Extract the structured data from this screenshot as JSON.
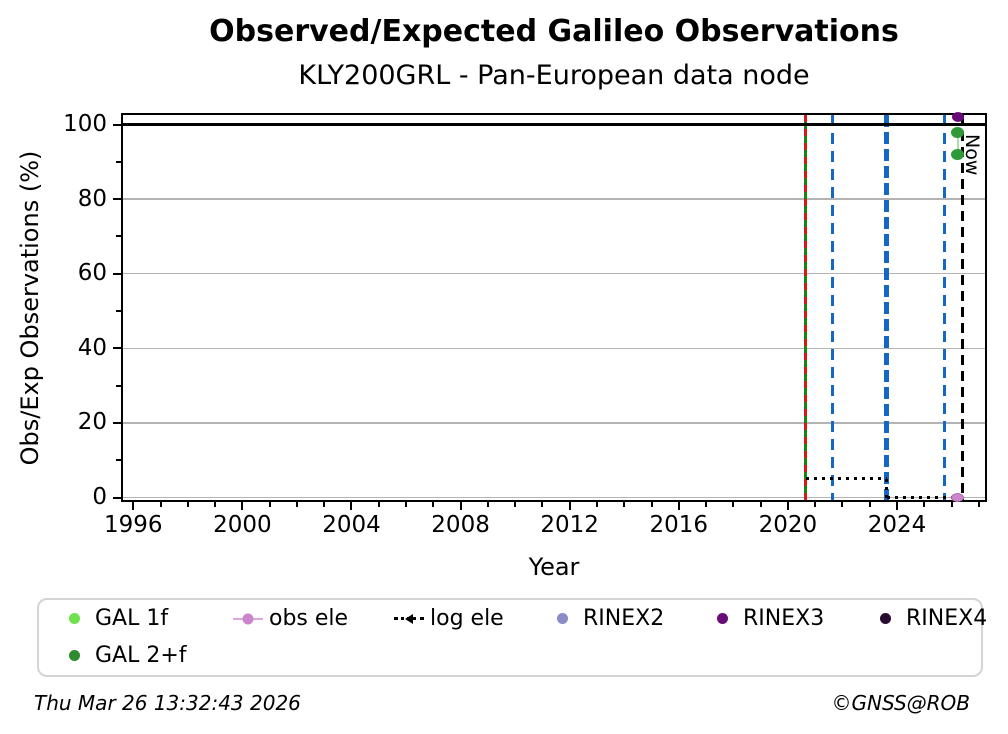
{
  "chart_data": {
    "type": "line",
    "title": "Observed/Expected Galileo Observations",
    "subtitle": "KLY200GRL - Pan-European data node",
    "xlabel": "Year",
    "ylabel": "Obs/Exp Observations (%)",
    "xlim": [
      1995.55,
      2027.3
    ],
    "ylim": [
      -1.2,
      103.1
    ],
    "xticks": [
      1996,
      2000,
      2004,
      2008,
      2012,
      2016,
      2020,
      2024
    ],
    "xminor_step": 1,
    "yticks": [
      0,
      20,
      40,
      60,
      80,
      100
    ],
    "yminor_step": 10,
    "grid": {
      "axis": "y",
      "color": "#b3b3b3"
    },
    "reference_line": {
      "y": 100,
      "color": "#000000"
    },
    "event_lines": [
      {
        "x": 2020.65,
        "style": "solid-with-dash-overlay",
        "color": "#128812",
        "overlay_color": "#d81818",
        "width": 3,
        "dash": 7,
        "gap": 7
      },
      {
        "x": 2021.65,
        "style": "dashed",
        "color": "#1467c4",
        "width": 3,
        "dash": 11,
        "gap": 7
      },
      {
        "x": 2023.63,
        "style": "dashed",
        "color": "#1467c4",
        "width": 5,
        "dash": 12,
        "gap": 5
      },
      {
        "x": 2025.75,
        "style": "dashed",
        "color": "#1467c4",
        "width": 3,
        "dash": 11,
        "gap": 7
      },
      {
        "x": 2026.4,
        "style": "dashed",
        "color": "#000000",
        "width": 3,
        "dash": 10,
        "gap": 6,
        "label": "Now"
      }
    ],
    "series": [
      {
        "name": "GAL 1f",
        "type": "line",
        "color": "#6fe04e",
        "line_color": "#a9e2a9",
        "points": [
          [
            2026.22,
            98
          ],
          [
            2026.22,
            92
          ]
        ]
      },
      {
        "name": "log ele",
        "type": "step-dotted",
        "color": "#000000",
        "points": [
          [
            2020.65,
            5
          ],
          [
            2023.63,
            5
          ],
          [
            2023.63,
            0
          ],
          [
            2026.3,
            0
          ]
        ]
      },
      {
        "name": "obs ele",
        "type": "markers",
        "color": "#cc85cc",
        "edge_color": "#a86fa8",
        "msize": [
          13,
          9
        ],
        "points": [
          [
            2026.22,
            0
          ]
        ]
      },
      {
        "name": "GAL 2+f",
        "type": "markers",
        "color": "#2f9b38",
        "msize": [
          13,
          11
        ],
        "points": [
          [
            2026.22,
            98
          ],
          [
            2026.22,
            92
          ]
        ]
      },
      {
        "name": "RINEX2",
        "type": "markers",
        "color": "#8b8bc8",
        "msize": [
          12,
          10
        ],
        "points": []
      },
      {
        "name": "RINEX3",
        "type": "markers",
        "color": "#690c79",
        "msize": [
          12,
          10
        ],
        "points": [
          [
            2026.22,
            102
          ]
        ]
      },
      {
        "name": "RINEX4",
        "type": "markers",
        "color": "#2a0b30",
        "msize": [
          12,
          10
        ],
        "points": []
      }
    ]
  },
  "legend": {
    "items": [
      {
        "label": "GAL 1f",
        "marker": "dot",
        "color": "#6fe04e"
      },
      {
        "label": "obs ele",
        "marker": "line-dot",
        "color": "#cc85cc",
        "line_color": "#d8a8d8"
      },
      {
        "label": "log ele",
        "marker": "dotted-caret",
        "color": "#000000"
      },
      {
        "label": "RINEX2",
        "marker": "dot",
        "color": "#8b8bc8"
      },
      {
        "label": "RINEX3",
        "marker": "dot",
        "color": "#690c79"
      },
      {
        "label": "RINEX4",
        "marker": "dot",
        "color": "#2a0b30"
      },
      {
        "label": "GAL 2+f",
        "marker": "dot",
        "color": "#2e8b2e"
      }
    ]
  },
  "footer": {
    "timestamp": "Thu Mar 26 13:32:43 2026",
    "credit": "©GNSS@ROB"
  }
}
